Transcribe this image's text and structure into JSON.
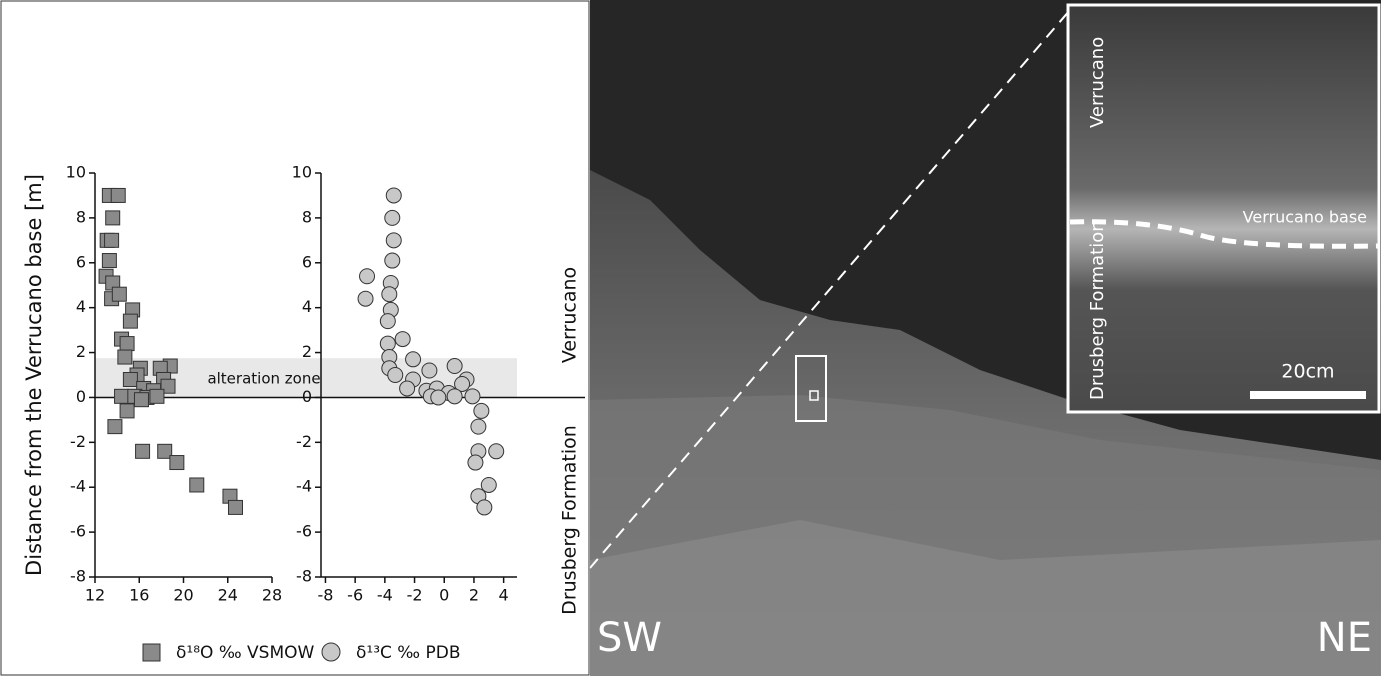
{
  "chart_data": [
    {
      "type": "scatter",
      "ylabel": "Distance from the Verrucano base [m]",
      "xlim": [
        12,
        28
      ],
      "xticks": [
        12,
        16,
        20,
        24,
        28
      ],
      "ylim": [
        -8,
        10
      ],
      "yticks": [
        -8,
        -6,
        -4,
        -2,
        0,
        2,
        4,
        6,
        8,
        10
      ],
      "shaded_range": [
        0,
        1.75
      ],
      "shaded_label": "alteration zone",
      "series": [
        {
          "name": "δ¹⁸O ‰ VSMOW",
          "color": "#8a8a8a",
          "marker": "square",
          "x": [
            13.3,
            14.1,
            13.6,
            13.1,
            13.5,
            13.3,
            13.0,
            13.6,
            13.5,
            14.2,
            15.4,
            15.2,
            14.4,
            14.9,
            14.7,
            16.1,
            18.8,
            17.9,
            15.8,
            18.2,
            15.2,
            18.6,
            16.4,
            17.3,
            14.4,
            15.6,
            16.7,
            17.6,
            16.2,
            14.9,
            13.8,
            16.3,
            18.3,
            19.4,
            21.2,
            24.2,
            24.7
          ],
          "values": [
            9.0,
            9.0,
            8.0,
            7.0,
            7.0,
            6.1,
            5.4,
            5.1,
            4.4,
            4.6,
            3.9,
            3.4,
            2.6,
            2.4,
            1.8,
            1.3,
            1.4,
            1.3,
            1.0,
            0.8,
            0.8,
            0.5,
            0.4,
            0.3,
            0.05,
            0.05,
            0,
            0.05,
            -0.1,
            -0.6,
            -1.3,
            -2.4,
            -2.4,
            -2.9,
            -3.9,
            -4.4,
            -4.9
          ]
        }
      ]
    },
    {
      "type": "scatter",
      "xlim": [
        -8.3,
        4.9
      ],
      "xticks": [
        -8,
        -6,
        -4,
        -2,
        0,
        2,
        4
      ],
      "ylim": [
        -8,
        10
      ],
      "yticks": [
        -8,
        -6,
        -4,
        -2,
        0,
        2,
        4,
        6,
        8,
        10
      ],
      "series": [
        {
          "name": "δ¹³C ‰ PDB",
          "color": "#c8c8c8",
          "marker": "circle",
          "x": [
            -3.4,
            -3.5,
            -3.4,
            -3.5,
            -5.2,
            -3.6,
            -5.3,
            -3.7,
            -3.6,
            -3.8,
            -2.8,
            -3.8,
            -3.7,
            -2.1,
            -3.7,
            -1.0,
            0.7,
            -3.3,
            -2.1,
            1.5,
            -2.5,
            1.2,
            -1.2,
            -0.5,
            0.3,
            -0.9,
            -0.4,
            0.7,
            1.9,
            2.5,
            2.3,
            2.3,
            3.5,
            2.1,
            3.0,
            2.3,
            2.7
          ],
          "values": [
            9.0,
            8.0,
            7.0,
            6.1,
            5.4,
            5.1,
            4.4,
            4.6,
            3.9,
            3.4,
            2.6,
            2.4,
            1.8,
            1.7,
            1.3,
            1.2,
            1.4,
            1.0,
            0.8,
            0.8,
            0.4,
            0.6,
            0.3,
            0.4,
            0.2,
            0.05,
            0,
            0.05,
            0.05,
            -0.6,
            -1.3,
            -2.4,
            -2.4,
            -2.9,
            -3.9,
            -4.4,
            -4.9
          ]
        }
      ]
    }
  ],
  "annotations": {
    "upper_unit": "Verrucano",
    "lower_unit": "Drusberg Formation"
  },
  "photo": {
    "left_label": "SW",
    "right_label": "NE",
    "inset_upper": "Verrucano",
    "inset_contact": "Verrucano base",
    "inset_lower": "Drusberg Formation",
    "scale_bar": "20cm"
  }
}
